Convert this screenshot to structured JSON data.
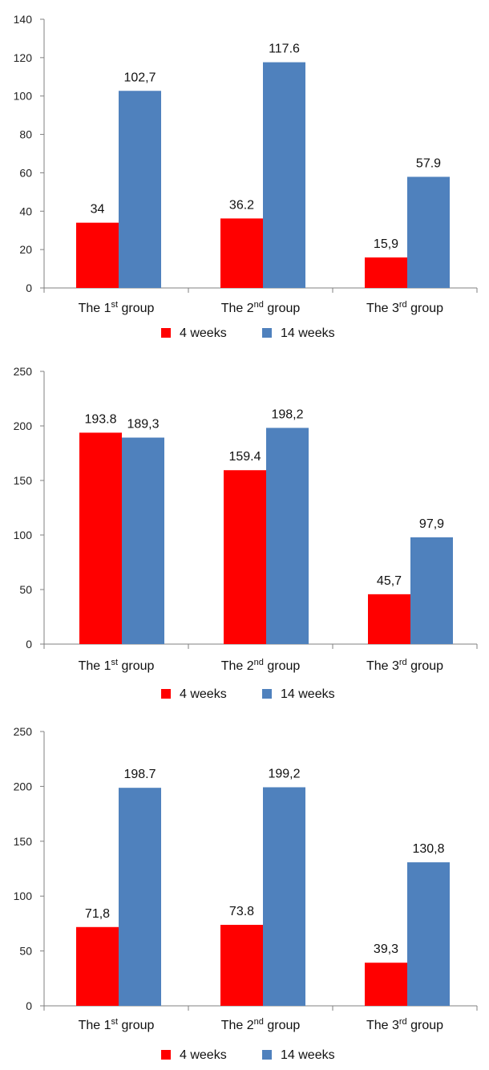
{
  "chart_data": [
    {
      "type": "bar",
      "categories": [
        {
          "pre": "The 1",
          "sup": "st",
          "post": " group"
        },
        {
          "pre": "The 2",
          "sup": "nd",
          "post": " group"
        },
        {
          "pre": "The 3",
          "sup": "rd",
          "post": " group"
        }
      ],
      "ylim": [
        0,
        140
      ],
      "yticks": [
        "0",
        "20",
        "40",
        "60",
        "80",
        "100",
        "120",
        "140"
      ],
      "grid": false,
      "legend_position": "bottom",
      "series": [
        {
          "name": "4 weeks",
          "color": "#ff0000",
          "values": [
            34,
            36.2,
            15.9
          ],
          "labels": [
            "34",
            "36.2",
            "15,9"
          ]
        },
        {
          "name": "14 weeks",
          "color": "#4f81bd",
          "values": [
            102.7,
            117.6,
            57.9
          ],
          "labels": [
            "102,7",
            "117.6",
            "57.9"
          ]
        }
      ]
    },
    {
      "type": "bar",
      "categories": [
        {
          "pre": "The 1",
          "sup": "st",
          "post": " group"
        },
        {
          "pre": "The 2",
          "sup": "nd",
          "post": " group"
        },
        {
          "pre": "The 3",
          "sup": "rd",
          "post": " group"
        }
      ],
      "ylim": [
        0,
        250
      ],
      "yticks": [
        "0",
        "50",
        "100",
        "150",
        "200",
        "250"
      ],
      "grid": false,
      "legend_position": "bottom",
      "series": [
        {
          "name": "4 weeks",
          "color": "#ff0000",
          "values": [
            193.8,
            159.4,
            45.7
          ],
          "labels": [
            "193.8",
            "159.4",
            "45,7"
          ]
        },
        {
          "name": "14 weeks",
          "color": "#4f81bd",
          "values": [
            189.3,
            198.2,
            97.9
          ],
          "labels": [
            "189,3",
            "198,2",
            "97,9"
          ]
        }
      ]
    },
    {
      "type": "bar",
      "categories": [
        {
          "pre": "The 1",
          "sup": "st",
          "post": " group"
        },
        {
          "pre": "The 2",
          "sup": "nd",
          "post": " group"
        },
        {
          "pre": "The 3",
          "sup": "rd",
          "post": " group"
        }
      ],
      "ylim": [
        0,
        250
      ],
      "yticks": [
        "0",
        "50",
        "100",
        "150",
        "200",
        "250"
      ],
      "grid": false,
      "legend_position": "bottom",
      "series": [
        {
          "name": "4 weeks",
          "color": "#ff0000",
          "values": [
            71.8,
            73.8,
            39.3
          ],
          "labels": [
            "71,8",
            "73.8",
            "39,3"
          ]
        },
        {
          "name": "14 weeks",
          "color": "#4f81bd",
          "values": [
            198.7,
            199.2,
            130.8
          ],
          "labels": [
            "198.7",
            "199,2",
            "130,8"
          ]
        }
      ]
    }
  ]
}
